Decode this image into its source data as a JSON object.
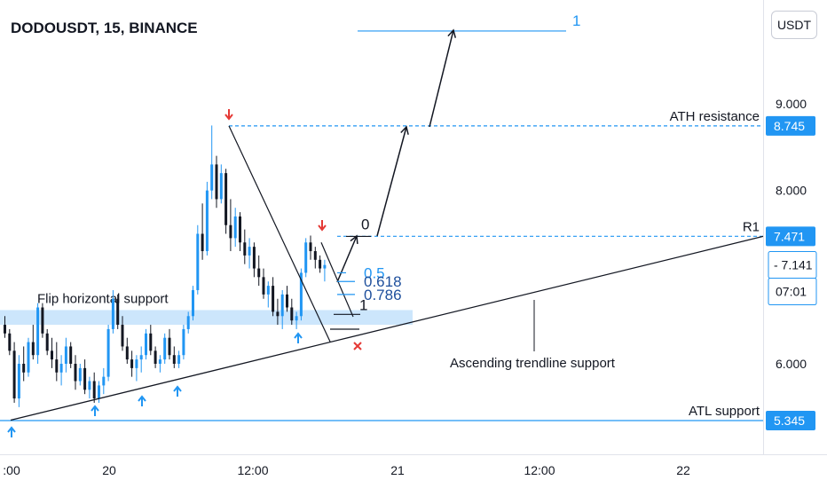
{
  "header": {
    "symbol": "DODOUSDT, 15, BINANCE",
    "currency_button": "USDT"
  },
  "colors": {
    "up": "#2196f3",
    "down": "#131722",
    "support_zone": "#bbdefb",
    "level_line": "#2196f3",
    "marker_down": "#e53935",
    "marker_up": "#2196f3",
    "fib_blue": "#2196f3",
    "fib_dark": "#1e4f9c"
  },
  "chart_data": {
    "type": "candlestick",
    "title": "DODOUSDT, 15, BINANCE",
    "xlabel": "",
    "ylabel": "",
    "x_ticks": [
      ":00",
      "20",
      "12:00",
      "21",
      "12:00",
      "22"
    ],
    "y_ticks": [
      "6.000",
      "8.000",
      "9.000"
    ],
    "ylim": [
      5.0,
      10.1
    ],
    "price_axis_labels": [
      {
        "value": 8.745,
        "text": "8.745",
        "style": "filled"
      },
      {
        "value": 7.471,
        "text": "7.471",
        "style": "filled"
      },
      {
        "value": 7.141,
        "text": "7.141",
        "style": "current"
      },
      {
        "value": 5.345,
        "text": "5.345",
        "style": "filled"
      }
    ],
    "countdown": "07:01",
    "candles": [
      [
        6.45,
        6.55,
        6.3,
        6.35
      ],
      [
        6.35,
        6.4,
        6.1,
        6.15
      ],
      [
        6.15,
        6.25,
        5.55,
        5.6
      ],
      [
        5.6,
        6.1,
        5.5,
        6.0
      ],
      [
        6.0,
        6.2,
        5.8,
        5.9
      ],
      [
        5.9,
        6.3,
        5.85,
        6.25
      ],
      [
        6.25,
        6.45,
        6.05,
        6.1
      ],
      [
        6.1,
        6.7,
        6.0,
        6.65
      ],
      [
        6.65,
        6.7,
        6.3,
        6.35
      ],
      [
        6.35,
        6.4,
        6.1,
        6.15
      ],
      [
        6.15,
        6.3,
        5.95,
        6.05
      ],
      [
        6.05,
        6.25,
        5.8,
        5.9
      ],
      [
        5.9,
        6.1,
        5.75,
        6.0
      ],
      [
        6.0,
        6.3,
        5.9,
        6.2
      ],
      [
        6.2,
        6.25,
        5.95,
        6.0
      ],
      [
        6.0,
        6.1,
        5.7,
        5.8
      ],
      [
        5.8,
        6.0,
        5.75,
        5.95
      ],
      [
        5.95,
        6.05,
        5.65,
        5.7
      ],
      [
        5.7,
        5.85,
        5.6,
        5.8
      ],
      [
        5.8,
        5.9,
        5.55,
        5.6
      ],
      [
        5.6,
        5.8,
        5.55,
        5.75
      ],
      [
        5.75,
        5.95,
        5.65,
        5.85
      ],
      [
        5.85,
        6.45,
        5.8,
        6.4
      ],
      [
        6.4,
        6.85,
        6.35,
        6.75
      ],
      [
        6.75,
        6.8,
        6.4,
        6.45
      ],
      [
        6.45,
        6.55,
        6.15,
        6.2
      ],
      [
        6.2,
        6.3,
        6.0,
        6.05
      ],
      [
        6.05,
        6.15,
        5.85,
        5.95
      ],
      [
        5.95,
        6.1,
        5.8,
        6.05
      ],
      [
        6.05,
        6.2,
        5.9,
        6.1
      ],
      [
        6.1,
        6.4,
        6.05,
        6.35
      ],
      [
        6.35,
        6.45,
        6.1,
        6.15
      ],
      [
        6.15,
        6.2,
        5.95,
        6.0
      ],
      [
        6.0,
        6.1,
        5.9,
        6.05
      ],
      [
        6.05,
        6.35,
        6.0,
        6.3
      ],
      [
        6.3,
        6.4,
        6.05,
        6.1
      ],
      [
        6.1,
        6.2,
        5.95,
        6.0
      ],
      [
        6.0,
        6.15,
        5.95,
        6.1
      ],
      [
        6.1,
        6.45,
        6.05,
        6.4
      ],
      [
        6.4,
        6.6,
        6.35,
        6.55
      ],
      [
        6.55,
        6.9,
        6.5,
        6.85
      ],
      [
        6.85,
        7.6,
        6.8,
        7.5
      ],
      [
        7.5,
        7.85,
        7.2,
        7.3
      ],
      [
        7.3,
        8.1,
        7.25,
        8.0
      ],
      [
        8.0,
        8.75,
        7.9,
        8.3
      ],
      [
        8.3,
        8.4,
        7.8,
        7.9
      ],
      [
        7.9,
        8.3,
        7.85,
        8.2
      ],
      [
        8.2,
        8.25,
        7.5,
        7.6
      ],
      [
        7.6,
        7.9,
        7.3,
        7.45
      ],
      [
        7.45,
        7.8,
        7.35,
        7.7
      ],
      [
        7.7,
        7.75,
        7.3,
        7.4
      ],
      [
        7.4,
        7.55,
        7.15,
        7.25
      ],
      [
        7.25,
        7.45,
        7.1,
        7.35
      ],
      [
        7.35,
        7.4,
        7.0,
        7.1
      ],
      [
        7.1,
        7.25,
        6.9,
        7.0
      ],
      [
        7.0,
        7.1,
        6.75,
        6.8
      ],
      [
        6.8,
        6.95,
        6.65,
        6.9
      ],
      [
        6.9,
        7.0,
        6.55,
        6.6
      ],
      [
        6.6,
        6.75,
        6.45,
        6.55
      ],
      [
        6.55,
        6.85,
        6.4,
        6.8
      ],
      [
        6.8,
        6.9,
        6.6,
        6.65
      ],
      [
        6.65,
        6.75,
        6.45,
        6.5
      ],
      [
        6.5,
        6.6,
        6.4,
        6.55
      ],
      [
        6.55,
        7.1,
        6.5,
        7.05
      ],
      [
        7.05,
        7.45,
        7.0,
        7.4
      ],
      [
        7.4,
        7.48,
        7.2,
        7.3
      ],
      [
        7.3,
        7.35,
        7.1,
        7.2
      ],
      [
        7.2,
        7.25,
        7.05,
        7.1
      ],
      [
        7.1,
        7.2,
        6.95,
        7.14
      ]
    ],
    "horizontal_levels": [
      {
        "value": 8.745,
        "label": "ATH resistance",
        "style": "dashed"
      },
      {
        "value": 7.471,
        "label": "R1",
        "style": "dashed"
      },
      {
        "value": 5.345,
        "label": "ATL support",
        "style": "solid"
      },
      {
        "value": 9.84,
        "label": "",
        "style": "solid"
      }
    ],
    "support_zone": {
      "low": 6.45,
      "high": 6.62,
      "label": "Flip horizontal support"
    },
    "trendline": {
      "label": "Ascending trendline support",
      "from_price": 5.35,
      "to_price": 7.47
    },
    "fibonacci": [
      {
        "level": "1",
        "value": 9.84
      },
      {
        "level": "0",
        "value": 7.47
      },
      {
        "level": "0.5",
        "value": 7.05
      },
      {
        "level": "0.618",
        "value": 6.95
      },
      {
        "level": "0.786",
        "value": 6.8
      },
      {
        "level": "1",
        "value": 6.57
      }
    ]
  }
}
